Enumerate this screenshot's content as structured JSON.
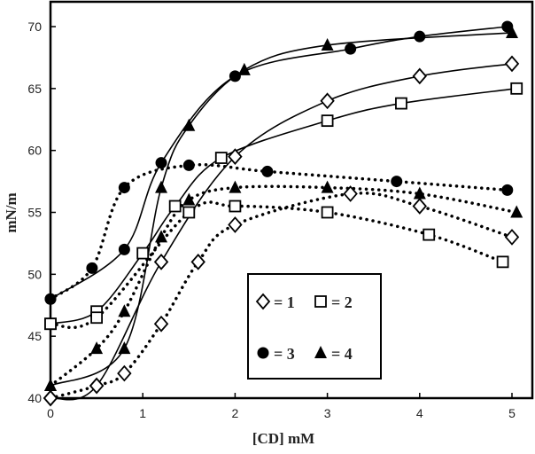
{
  "chart_data": {
    "type": "line",
    "xlabel": "[CD] mM",
    "ylabel": "mN/m",
    "xlim": [
      0,
      5
    ],
    "ylim": [
      40,
      70
    ],
    "xticks": [
      "0",
      "1",
      "2",
      "3",
      "4",
      "5"
    ],
    "yticks": [
      "40",
      "45",
      "50",
      "55",
      "60",
      "65",
      "70"
    ],
    "grid": false,
    "legend_placement": "center-bottom",
    "legend": [
      {
        "marker": "diamond-open",
        "label": "= 1"
      },
      {
        "marker": "square-open",
        "label": "= 2"
      },
      {
        "marker": "circle-filled",
        "label": "= 3"
      },
      {
        "marker": "triangle-filled",
        "label": "= 4"
      }
    ],
    "series": [
      {
        "name": "1 solid",
        "marker": "diamond-open",
        "style": "solid",
        "x": [
          0,
          0.5,
          1.2,
          2,
          3,
          4,
          5
        ],
        "y": [
          40,
          41,
          51,
          59.5,
          64,
          66,
          67
        ]
      },
      {
        "name": "1 dotted",
        "marker": "diamond-open",
        "style": "dotted",
        "x": [
          0,
          0.5,
          0.8,
          1.2,
          1.6,
          2,
          3.25,
          4,
          5
        ],
        "y": [
          40,
          41,
          42,
          46,
          51,
          54,
          56.5,
          55.5,
          53
        ]
      },
      {
        "name": "2 solid",
        "marker": "square-open",
        "style": "solid",
        "x": [
          0,
          0.5,
          1,
          1.35,
          1.85,
          3,
          3.8,
          5.05
        ],
        "y": [
          46,
          47,
          51.7,
          55.5,
          59.4,
          62.4,
          63.8,
          65
        ]
      },
      {
        "name": "2 dotted",
        "marker": "square-open",
        "style": "dotted",
        "x": [
          0,
          0.5,
          1.5,
          2,
          3,
          4.1,
          4.9
        ],
        "y": [
          46,
          46.5,
          55,
          55.5,
          55,
          53.2,
          51
        ]
      },
      {
        "name": "3 solid",
        "marker": "circle-filled",
        "style": "solid",
        "x": [
          0,
          0.8,
          1.2,
          2,
          3.25,
          4,
          4.95
        ],
        "y": [
          48,
          52,
          59,
          66,
          68.2,
          69.2,
          70
        ]
      },
      {
        "name": "3 dotted",
        "marker": "circle-filled",
        "style": "dotted",
        "x": [
          0,
          0.45,
          0.8,
          1.5,
          2.35,
          3.75,
          4.95
        ],
        "y": [
          48,
          50.5,
          57,
          58.8,
          58.3,
          57.5,
          56.8
        ]
      },
      {
        "name": "4 solid",
        "marker": "triangle-filled",
        "style": "solid",
        "x": [
          0,
          0.8,
          1.2,
          1.5,
          2.1,
          3,
          5
        ],
        "y": [
          41,
          44,
          57,
          62,
          66.5,
          68.5,
          69.5
        ]
      },
      {
        "name": "4 dotted",
        "marker": "triangle-filled",
        "style": "dotted",
        "x": [
          0,
          0.5,
          0.8,
          1.2,
          1.5,
          2,
          3,
          4,
          5.05
        ],
        "y": [
          41,
          44,
          47,
          53,
          56,
          57,
          57,
          56.5,
          55
        ]
      }
    ]
  }
}
